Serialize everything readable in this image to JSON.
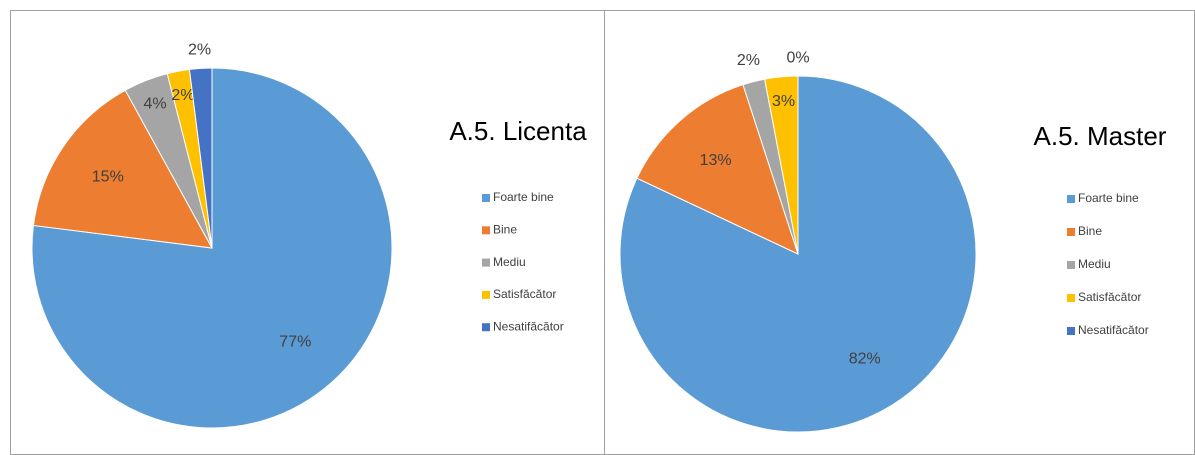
{
  "chart_data": [
    {
      "type": "pie",
      "title": "A.5. Licenta",
      "categories": [
        "Foarte bine",
        "Bine",
        "Mediu",
        "Satisfăcător",
        "Nesatifăcător"
      ],
      "values": [
        77,
        15,
        4,
        2,
        2
      ],
      "value_labels": [
        "77%",
        "15%",
        "4%",
        "2%",
        "2%"
      ],
      "colors": [
        "#5b9bd5",
        "#ed7d31",
        "#a5a5a5",
        "#ffc000",
        "#4472c4"
      ],
      "legend": "right"
    },
    {
      "type": "pie",
      "title": "A.5. Master",
      "categories": [
        "Foarte bine",
        "Bine",
        "Mediu",
        "Satisfăcător",
        "Nesatifăcător"
      ],
      "values": [
        82,
        13,
        2,
        3,
        0
      ],
      "value_labels": [
        "82%",
        "13%",
        "2%",
        "3%",
        "0%"
      ],
      "colors": [
        "#5b9bd5",
        "#ed7d31",
        "#a5a5a5",
        "#ffc000",
        "#4472c4"
      ],
      "legend": "right"
    }
  ]
}
